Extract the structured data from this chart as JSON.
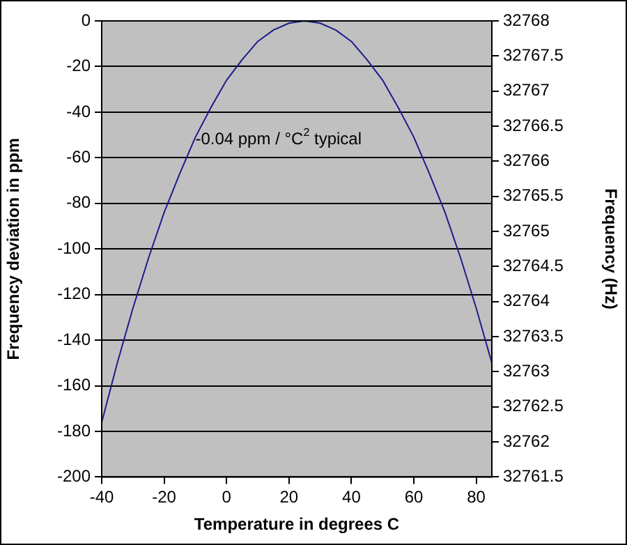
{
  "chart_data": {
    "type": "line",
    "xlabel": "Temperature in degrees C",
    "ylabel": "Frequency deviation in ppm",
    "y2label": "Frequency (Hz)",
    "annotations": [
      "-0.04 ppm / °C$^{2}$ typical"
    ],
    "x": [
      -40,
      -35,
      -30,
      -25,
      -20,
      -15,
      -10,
      -5,
      0,
      5,
      10,
      15,
      20,
      25,
      30,
      35,
      40,
      45,
      50,
      55,
      60,
      65,
      70,
      75,
      80,
      85
    ],
    "series": [
      {
        "color": "#1c1c8c",
        "values": [
          -176,
          -150,
          -126,
          -104,
          -84,
          -67,
          -51,
          -38,
          -26,
          -17,
          -9,
          -4,
          -1,
          0,
          -1,
          -4,
          -9,
          -17,
          -26,
          -38,
          -51,
          -67,
          -84,
          -104,
          -126,
          -150
        ]
      }
    ],
    "xlim": [
      -40,
      85
    ],
    "xticks": [
      -40,
      -20,
      0,
      20,
      40,
      60,
      80
    ],
    "ylim": [
      -200,
      0
    ],
    "yticks": [
      -200,
      -180,
      -160,
      -140,
      -120,
      -100,
      -80,
      -60,
      -40,
      -20,
      0
    ],
    "y2lim": [
      32761.5,
      32768
    ],
    "y2ticks": [
      32761.5,
      32762,
      32762.5,
      32763,
      32763.5,
      32764,
      32764.5,
      32765,
      32765.5,
      32766,
      32766.5,
      32767,
      32767.5,
      32768
    ],
    "grid": "y",
    "legend": false,
    "marker": "none",
    "line_style": "solid"
  }
}
